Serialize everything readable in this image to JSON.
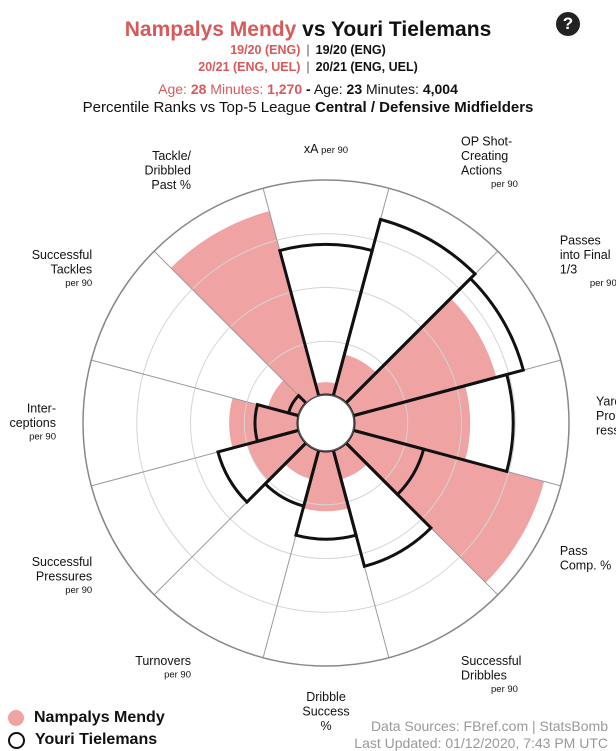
{
  "header": {
    "player1": "Nampalys Mendy",
    "vs": "vs",
    "player2": "Youri Tielemans",
    "p1_season1": "19/20 (ENG)",
    "p2_season1": "19/20 (ENG)",
    "p1_season2": "20/21 (ENG, UEL)",
    "p2_season2": "20/21 (ENG, UEL)",
    "separator": "|",
    "age_label": "Age:",
    "minutes_label": "Minutes:",
    "p1_age": "28",
    "p1_minutes": "1,270",
    "dash": "-",
    "p2_age": "23",
    "p2_minutes": "4,004",
    "subtitle_prefix": "Percentile Ranks vs Top-5 League",
    "subtitle_bold": "Central / Defensive Midfielders",
    "help_glyph": "?"
  },
  "chart_data": {
    "type": "radar-bar",
    "title": "",
    "rmax": 100,
    "categories": [
      {
        "lines": [
          "xA"
        ],
        "per90": "per 90"
      },
      {
        "lines": [
          "OP Shot-",
          "Creating",
          "Actions"
        ],
        "per90": "per 90"
      },
      {
        "lines": [
          "Passes",
          "into Final",
          "1/3"
        ],
        "per90": "per 90"
      },
      {
        "lines": [
          "Yards",
          "Prog-",
          "ressed"
        ],
        "per90": "per 90"
      },
      {
        "lines": [
          "Pass",
          "Comp. %"
        ],
        "per90": ""
      },
      {
        "lines": [
          "Successful",
          "Dribbles"
        ],
        "per90": "per 90"
      },
      {
        "lines": [
          "Dribble",
          "Success",
          "%"
        ],
        "per90": ""
      },
      {
        "lines": [
          "Turnovers"
        ],
        "per90": "per 90"
      },
      {
        "lines": [
          "Successful",
          "Pressures"
        ],
        "per90": "per 90"
      },
      {
        "lines": [
          "Inter-",
          "ceptions"
        ],
        "per90": "per 90"
      },
      {
        "lines": [
          "Successful",
          "Tackles"
        ],
        "per90": "per 90"
      },
      {
        "lines": [
          "Tackle/",
          "Dribbled",
          "Past %"
        ],
        "per90": ""
      }
    ],
    "series": [
      {
        "name": "Nampalys Mendy",
        "color": "#f0a3a3",
        "values": [
          6,
          20,
          69,
          54,
          92,
          14,
          28,
          14,
          25,
          32,
          15,
          89
        ]
      },
      {
        "name": "Youri Tielemans",
        "color": "#111111",
        "values": [
          70,
          85,
          82,
          74,
          34,
          56,
          41,
          27,
          39,
          20,
          5,
          0
        ]
      }
    ]
  },
  "legend": {
    "p1": "Nampalys Mendy",
    "p2": "Youri Tielemans"
  },
  "footer": {
    "sources": "Data Sources: FBref.com | StatsBomb",
    "updated": "Last Updated: 01/12/2020, 7:43 PM UTC"
  }
}
